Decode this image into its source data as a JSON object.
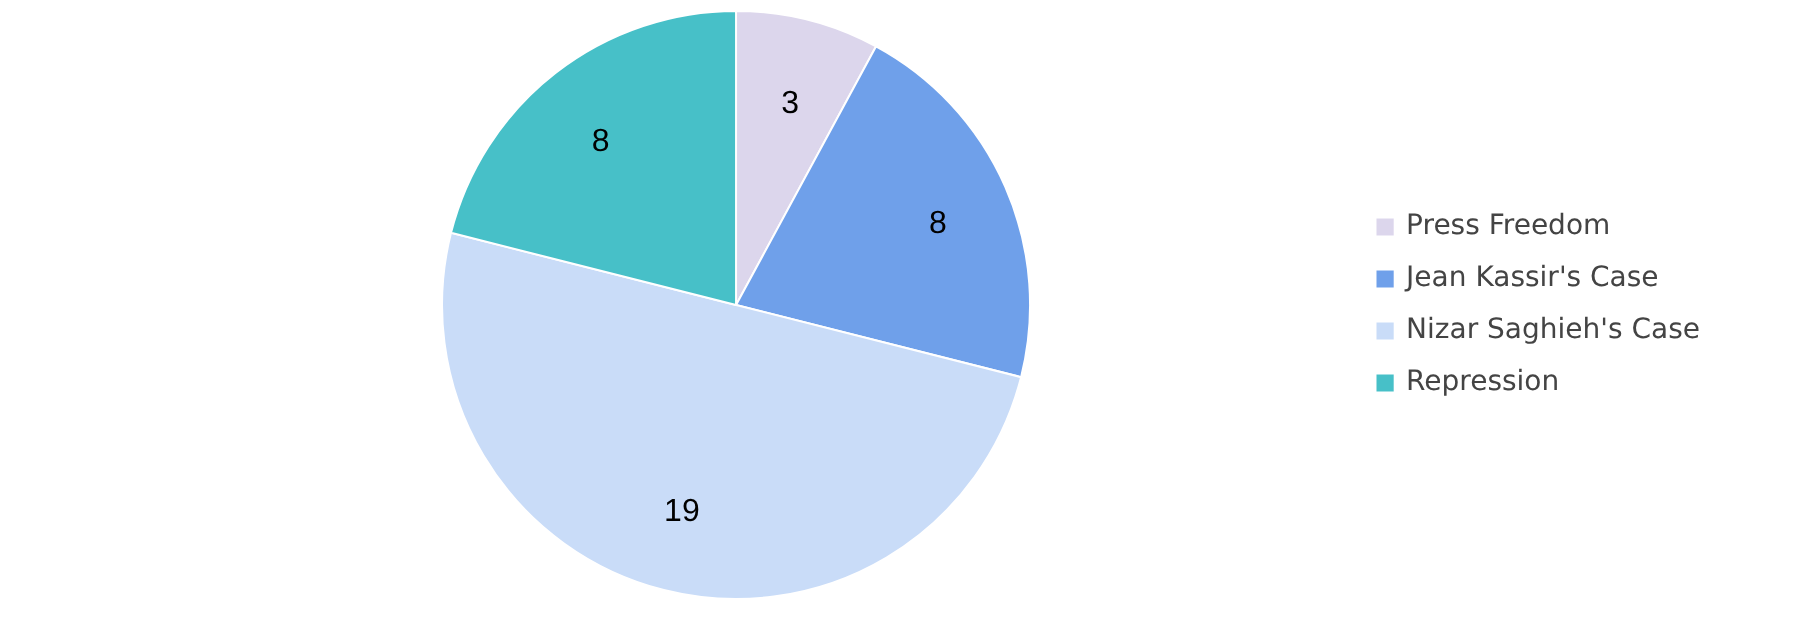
{
  "chart_data": {
    "type": "pie",
    "categories": [
      "Press Freedom",
      "Jean Kassir's Case",
      "Nizar Saghieh's Case",
      "Repression"
    ],
    "values": [
      3,
      8,
      19,
      8
    ],
    "colors": [
      "#dcd6ec",
      "#6fa0ea",
      "#c9dcf8",
      "#47c0c8"
    ],
    "data_labels": true,
    "legend": "right"
  }
}
